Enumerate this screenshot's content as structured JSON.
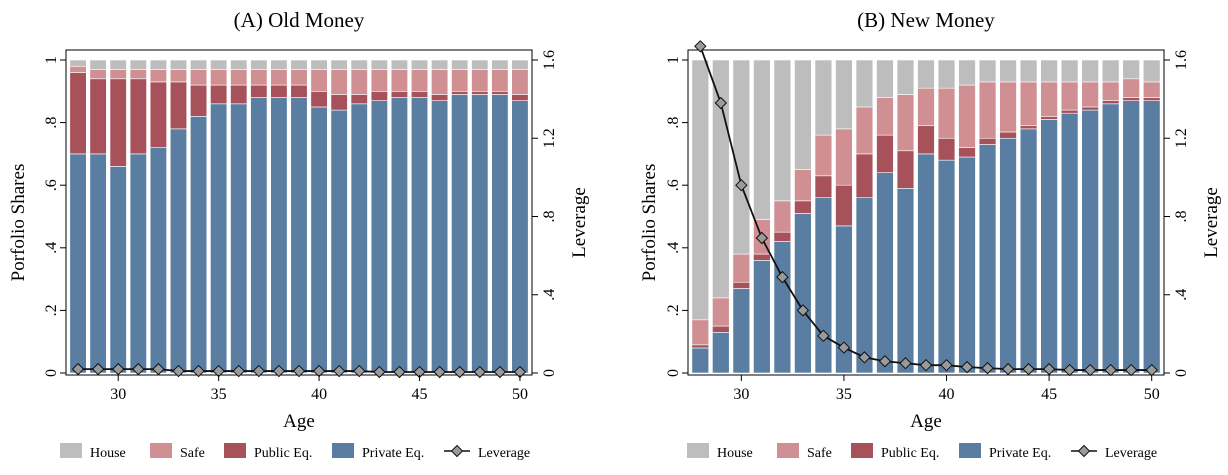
{
  "colors": {
    "house": "#bdbdbd",
    "safe": "#cf8f93",
    "public": "#a7515a",
    "private": "#5a7ea2",
    "leverage_line": "#111111",
    "leverage_marker": "#9a9a9a"
  },
  "legend": {
    "house": "House",
    "safe": "Safe",
    "public": "Public Eq.",
    "private": "Private Eq.",
    "leverage": "Leverage"
  },
  "chart_data": [
    {
      "type": "bar",
      "title": "(A) Old Money",
      "xlabel": "Age",
      "ylabel": "Porfolio Shares",
      "y2label": "Leverage",
      "x": [
        28,
        29,
        30,
        31,
        32,
        33,
        34,
        35,
        36,
        37,
        38,
        39,
        40,
        41,
        42,
        43,
        44,
        45,
        46,
        47,
        48,
        49,
        50
      ],
      "xticks": [
        30,
        35,
        40,
        45,
        50
      ],
      "xtick_labels": [
        "30",
        "35",
        "40",
        "45",
        "50"
      ],
      "ylim": [
        0,
        1
      ],
      "yticks": [
        0,
        0.2,
        0.4,
        0.6,
        0.8,
        1
      ],
      "ytick_labels": [
        "0",
        ".2",
        ".4",
        ".6",
        ".8",
        "1"
      ],
      "y2lim": [
        0,
        1.6
      ],
      "y2ticks": [
        0,
        0.4,
        0.8,
        1.2,
        1.6
      ],
      "y2tick_labels": [
        "0",
        ".4",
        ".8",
        "1.2",
        "1.6"
      ],
      "stacked": true,
      "series": [
        {
          "name": "Private Eq.",
          "values": [
            0.7,
            0.7,
            0.66,
            0.7,
            0.72,
            0.78,
            0.82,
            0.86,
            0.86,
            0.88,
            0.88,
            0.88,
            0.85,
            0.84,
            0.86,
            0.87,
            0.88,
            0.88,
            0.87,
            0.89,
            0.89,
            0.89,
            0.87
          ]
        },
        {
          "name": "Public Eq.",
          "values": [
            0.26,
            0.24,
            0.28,
            0.24,
            0.21,
            0.15,
            0.1,
            0.06,
            0.06,
            0.04,
            0.04,
            0.04,
            0.05,
            0.05,
            0.03,
            0.03,
            0.02,
            0.02,
            0.02,
            0.01,
            0.01,
            0.01,
            0.02
          ]
        },
        {
          "name": "Safe",
          "values": [
            0.02,
            0.03,
            0.03,
            0.03,
            0.04,
            0.04,
            0.05,
            0.05,
            0.05,
            0.05,
            0.05,
            0.05,
            0.07,
            0.08,
            0.08,
            0.07,
            0.07,
            0.07,
            0.08,
            0.07,
            0.07,
            0.07,
            0.08
          ]
        },
        {
          "name": "House",
          "values": [
            0.02,
            0.03,
            0.03,
            0.03,
            0.03,
            0.03,
            0.03,
            0.03,
            0.03,
            0.03,
            0.03,
            0.03,
            0.03,
            0.03,
            0.03,
            0.03,
            0.03,
            0.03,
            0.03,
            0.03,
            0.03,
            0.03,
            0.03
          ]
        }
      ],
      "leverage": [
        0.02,
        0.02,
        0.02,
        0.02,
        0.02,
        0.01,
        0.01,
        0.01,
        0.01,
        0.01,
        0.01,
        0.01,
        0.01,
        0.01,
        0.01,
        0.005,
        0.005,
        0.005,
        0.005,
        0.005,
        0.005,
        0.005,
        0.005
      ],
      "grid": false,
      "legend_position": "bottom"
    },
    {
      "type": "bar",
      "title": "(B) New Money",
      "xlabel": "Age",
      "ylabel": "Porfolio Shares",
      "y2label": "Leverage",
      "x": [
        28,
        29,
        30,
        31,
        32,
        33,
        34,
        35,
        36,
        37,
        38,
        39,
        40,
        41,
        42,
        43,
        44,
        45,
        46,
        47,
        48,
        49,
        50
      ],
      "xticks": [
        30,
        35,
        40,
        45,
        50
      ],
      "xtick_labels": [
        "30",
        "35",
        "40",
        "45",
        "50"
      ],
      "ylim": [
        0,
        1
      ],
      "yticks": [
        0,
        0.2,
        0.4,
        0.6,
        0.8,
        1
      ],
      "ytick_labels": [
        "0",
        ".2",
        ".4",
        ".6",
        ".8",
        "1"
      ],
      "y2lim": [
        0,
        1.6
      ],
      "y2ticks": [
        0,
        0.4,
        0.8,
        1.2,
        1.6
      ],
      "y2tick_labels": [
        "0",
        ".4",
        ".8",
        "1.2",
        "1.6"
      ],
      "stacked": true,
      "series": [
        {
          "name": "Private Eq.",
          "values": [
            0.08,
            0.13,
            0.27,
            0.36,
            0.42,
            0.51,
            0.56,
            0.47,
            0.56,
            0.64,
            0.59,
            0.7,
            0.68,
            0.69,
            0.73,
            0.75,
            0.78,
            0.81,
            0.83,
            0.84,
            0.86,
            0.87,
            0.87
          ]
        },
        {
          "name": "Public Eq.",
          "values": [
            0.01,
            0.02,
            0.02,
            0.02,
            0.03,
            0.04,
            0.07,
            0.13,
            0.14,
            0.12,
            0.12,
            0.09,
            0.07,
            0.03,
            0.02,
            0.02,
            0.01,
            0.01,
            0.01,
            0.01,
            0.01,
            0.01,
            0.01
          ]
        },
        {
          "name": "Safe",
          "values": [
            0.08,
            0.09,
            0.09,
            0.11,
            0.1,
            0.1,
            0.13,
            0.18,
            0.15,
            0.12,
            0.18,
            0.12,
            0.16,
            0.2,
            0.18,
            0.16,
            0.14,
            0.11,
            0.09,
            0.08,
            0.06,
            0.06,
            0.05
          ]
        },
        {
          "name": "House",
          "values": [
            0.83,
            0.76,
            0.62,
            0.51,
            0.45,
            0.35,
            0.24,
            0.22,
            0.15,
            0.12,
            0.11,
            0.09,
            0.09,
            0.08,
            0.07,
            0.07,
            0.07,
            0.07,
            0.07,
            0.07,
            0.07,
            0.06,
            0.07
          ]
        }
      ],
      "leverage": [
        1.67,
        1.38,
        0.96,
        0.69,
        0.49,
        0.32,
        0.19,
        0.13,
        0.08,
        0.06,
        0.05,
        0.04,
        0.04,
        0.03,
        0.025,
        0.02,
        0.02,
        0.02,
        0.015,
        0.015,
        0.015,
        0.015,
        0.015
      ],
      "grid": false,
      "legend_position": "bottom"
    }
  ]
}
